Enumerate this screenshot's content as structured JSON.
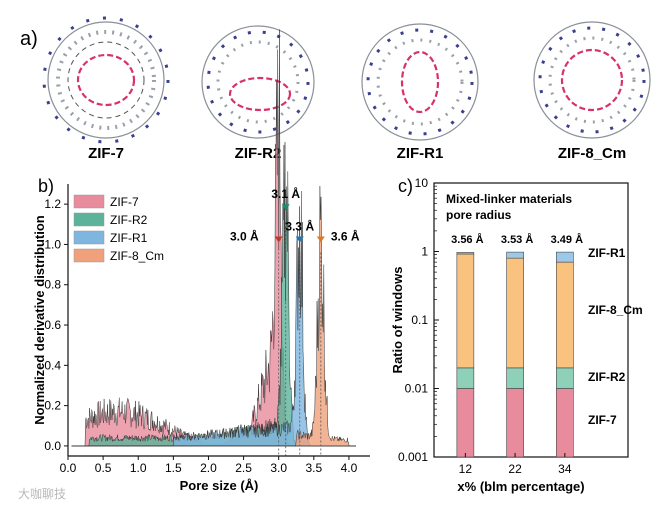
{
  "panel_a": {
    "label": "a)",
    "structures": [
      {
        "name": "ZIF-7",
        "color_ring": "#d6336c"
      },
      {
        "name": "ZIF-R2",
        "color_ring": "#d6336c"
      },
      {
        "name": "ZIF-R1",
        "color_ring": "#d6336c"
      },
      {
        "name": "ZIF-8_Cm",
        "color_ring": "#d6336c"
      }
    ]
  },
  "chart_data": [
    {
      "type": "area",
      "panel_label": "b)",
      "title": "",
      "xlabel": "Pore size (Å)",
      "ylabel": "Normalized derivative distribution",
      "xlim": [
        0.0,
        4.3
      ],
      "ylim": [
        -0.05,
        1.3
      ],
      "xticks": [
        "0.0",
        "0.5",
        "1.0",
        "1.5",
        "2.0",
        "2.5",
        "3.0",
        "3.5",
        "4.0"
      ],
      "yticks": [
        "0.0",
        "0.2",
        "0.4",
        "0.6",
        "0.8",
        "1.0",
        "1.2"
      ],
      "legend_position": "top-left",
      "series": [
        {
          "name": "ZIF-7",
          "color": "#e88b9c",
          "peak_x": 3.0,
          "peak_y": 1.0,
          "peak_label": "3.0 Å",
          "marker_color": "#c0392b"
        },
        {
          "name": "ZIF-R2",
          "color": "#5cb39a",
          "peak_x": 3.1,
          "peak_y": 1.15,
          "peak_label": "3.1 Å",
          "marker_color": "#1e8f6e"
        },
        {
          "name": "ZIF-R1",
          "color": "#7eb6e0",
          "peak_x": 3.3,
          "peak_y": 1.0,
          "peak_label": "3.3 Å",
          "marker_color": "#1f77b4"
        },
        {
          "name": "ZIF-8_Cm",
          "color": "#f0a07a",
          "peak_x": 3.6,
          "peak_y": 1.0,
          "peak_label": "3.6 Å",
          "marker_color": "#d97a2b"
        }
      ]
    },
    {
      "type": "bar",
      "stacked": true,
      "yscale": "log",
      "panel_label": "c)",
      "title": "Mixed-linker materials pore radius",
      "title_line1": "Mixed-linker materials",
      "title_line2": "pore radius",
      "xlabel": "x% (blm percentage)",
      "ylabel": "Ratio of windows",
      "ylim": [
        0.001,
        10
      ],
      "yticks": [
        "0.001",
        "0.01",
        "0.1",
        "1",
        "10"
      ],
      "categories": [
        "12",
        "22",
        "34"
      ],
      "bar_top_labels": [
        "3.56 Å",
        "3.53 Å",
        "3.49 Å"
      ],
      "series": [
        {
          "name": "ZIF-7",
          "color": "#e88b9c",
          "values": [
            0.01,
            0.01,
            0.01
          ]
        },
        {
          "name": "ZIF-R2",
          "color": "#8fd0b8",
          "values": [
            0.01,
            0.01,
            0.01
          ]
        },
        {
          "name": "ZIF-8_Cm",
          "color": "#f9c27e",
          "values": [
            0.9,
            0.78,
            0.68
          ]
        },
        {
          "name": "ZIF-R1",
          "color": "#9cc8ea",
          "values": [
            0.05,
            0.18,
            0.28
          ]
        }
      ]
    }
  ],
  "watermark": "大咖聊技"
}
